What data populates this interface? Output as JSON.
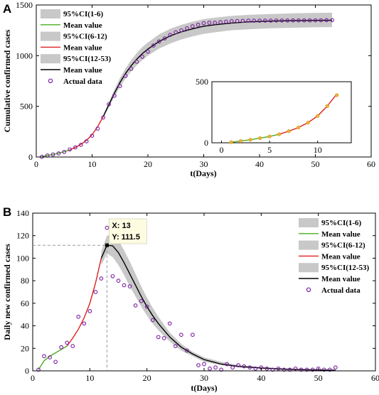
{
  "chart_data": [
    {
      "type": "line",
      "panel": "A",
      "ylabel": "Cumulative confirmed cases",
      "xlabel": "t(Days)",
      "xlim": [
        0,
        60
      ],
      "ylim": [
        0,
        1500
      ],
      "xticks": [
        0,
        10,
        20,
        30,
        40,
        50,
        60
      ],
      "yticks": [
        0,
        500,
        1000,
        1500
      ],
      "legend_position": "top-left",
      "legend": [
        {
          "label": "95%CI(1-6)",
          "kind": "band",
          "color": "#c8c8c8"
        },
        {
          "label": "Mean value",
          "kind": "line",
          "color": "#4caf1e"
        },
        {
          "label": "95%CI(6-12)",
          "kind": "band",
          "color": "#c8c8c8"
        },
        {
          "label": "Mean value",
          "kind": "line",
          "color": "#e02020"
        },
        {
          "label": "95%CI(12-53)",
          "kind": "band",
          "color": "#c8c8c8"
        },
        {
          "label": "Mean value",
          "kind": "line",
          "color": "#000000"
        },
        {
          "label": "Actual data",
          "kind": "marker",
          "color": "#7b1fa2"
        }
      ],
      "actual": {
        "x": [
          1,
          2,
          3,
          4,
          5,
          6,
          7,
          8,
          9,
          10,
          11,
          12,
          13,
          14,
          15,
          16,
          17,
          18,
          19,
          20,
          21,
          22,
          23,
          24,
          25,
          26,
          27,
          28,
          29,
          30,
          31,
          32,
          33,
          34,
          35,
          36,
          37,
          38,
          39,
          40,
          41,
          42,
          43,
          44,
          45,
          46,
          47,
          48,
          49,
          50,
          51,
          52,
          53
        ],
        "y": [
          2,
          15,
          25,
          35,
          50,
          75,
          95,
          120,
          155,
          210,
          280,
          390,
          520,
          605,
          700,
          800,
          870,
          940,
          990,
          1040,
          1100,
          1140,
          1170,
          1205,
          1230,
          1250,
          1270,
          1290,
          1305,
          1320,
          1325,
          1325,
          1330,
          1335,
          1340,
          1342,
          1343,
          1345,
          1345,
          1345,
          1346,
          1346,
          1347,
          1347,
          1347,
          1348,
          1348,
          1348,
          1348,
          1349,
          1349,
          1350,
          1350
        ]
      },
      "mean_segments": [
        {
          "range": [
            1,
            6
          ],
          "color": "#4caf1e",
          "x": [
            1,
            2,
            3,
            4,
            5,
            6
          ],
          "y": [
            5,
            15,
            25,
            38,
            52,
            70
          ]
        },
        {
          "range": [
            6,
            12
          ],
          "color": "#e02020",
          "x": [
            6,
            7,
            8,
            9,
            10,
            11,
            12
          ],
          "y": [
            70,
            95,
            125,
            165,
            220,
            300,
            400
          ]
        },
        {
          "range": [
            12,
            53
          ],
          "color": "#000000",
          "x": [
            12,
            13,
            14,
            15,
            16,
            17,
            18,
            19,
            20,
            22,
            24,
            26,
            28,
            30,
            32,
            35,
            38,
            42,
            46,
            50,
            53
          ],
          "y": [
            400,
            515,
            630,
            735,
            825,
            900,
            965,
            1020,
            1065,
            1140,
            1195,
            1235,
            1265,
            1290,
            1305,
            1322,
            1333,
            1341,
            1345,
            1348,
            1349
          ]
        }
      ],
      "ci_band": {
        "x": [
          12,
          13,
          14,
          15,
          16,
          17,
          18,
          19,
          20,
          22,
          24,
          26,
          28,
          30,
          32,
          35,
          38,
          42,
          46,
          50,
          53
        ],
        "lower": [
          385,
          490,
          595,
          690,
          775,
          845,
          905,
          955,
          1000,
          1070,
          1120,
          1160,
          1190,
          1215,
          1230,
          1250,
          1260,
          1270,
          1275,
          1280,
          1282
        ],
        "upper": [
          415,
          540,
          665,
          780,
          875,
          955,
          1025,
          1085,
          1130,
          1210,
          1265,
          1305,
          1335,
          1360,
          1375,
          1392,
          1403,
          1411,
          1418,
          1422,
          1424
        ]
      },
      "inset": {
        "xlim": [
          0,
          12
        ],
        "ylim": [
          0,
          500
        ],
        "xticks": [
          0,
          5,
          10
        ],
        "yticks": [
          0,
          500
        ],
        "actual": {
          "x": [
            1,
            2,
            3,
            4,
            5,
            6,
            7,
            8,
            9,
            10,
            11,
            12
          ],
          "y": [
            5,
            15,
            25,
            38,
            52,
            70,
            95,
            125,
            165,
            220,
            300,
            390
          ]
        },
        "green": {
          "x": [
            1,
            2,
            3,
            4,
            5,
            6
          ],
          "y": [
            5,
            15,
            25,
            38,
            52,
            70
          ]
        },
        "red": {
          "x": [
            6,
            7,
            8,
            9,
            10,
            11,
            12
          ],
          "y": [
            70,
            95,
            125,
            165,
            220,
            300,
            400
          ]
        }
      }
    },
    {
      "type": "line",
      "panel": "B",
      "ylabel": "Daily new confirmed cases",
      "xlabel": "t(Days)",
      "xlim": [
        0,
        60
      ],
      "ylim": [
        0,
        140
      ],
      "xticks": [
        0,
        10,
        20,
        30,
        40,
        50,
        60
      ],
      "yticks": [
        0,
        20,
        40,
        60,
        80,
        100,
        120,
        140
      ],
      "legend_position": "top-right",
      "legend": [
        {
          "label": "95%CI(1-6)",
          "kind": "band",
          "color": "#c8c8c8"
        },
        {
          "label": "Mean value",
          "kind": "line",
          "color": "#4caf1e"
        },
        {
          "label": "95%CI(6-12)",
          "kind": "band",
          "color": "#c8c8c8"
        },
        {
          "label": "Mean value",
          "kind": "line",
          "color": "#e02020"
        },
        {
          "label": "95%CI(12-53)",
          "kind": "band",
          "color": "#c8c8c8"
        },
        {
          "label": "Mean value",
          "kind": "line",
          "color": "#000000"
        },
        {
          "label": "Actual data",
          "kind": "marker",
          "color": "#7b1fa2"
        }
      ],
      "datatip": {
        "x_label": "X: 13",
        "y_label": "Y: 111.5",
        "x": 13,
        "y": 111.5
      },
      "actual": {
        "x": [
          1,
          2,
          3,
          4,
          5,
          6,
          7,
          8,
          9,
          10,
          11,
          12,
          13,
          14,
          15,
          16,
          17,
          18,
          19,
          20,
          21,
          22,
          23,
          24,
          25,
          26,
          27,
          28,
          29,
          30,
          31,
          32,
          33,
          34,
          35,
          36,
          37,
          38,
          39,
          40,
          41,
          42,
          43,
          44,
          45,
          46,
          47,
          48,
          49,
          50,
          51,
          52,
          53
        ],
        "y": [
          1,
          13,
          12,
          8,
          21,
          25,
          22,
          48,
          42,
          53,
          70,
          82,
          127,
          84,
          80,
          76,
          75,
          58,
          62,
          57,
          45,
          30,
          29,
          42,
          22,
          32,
          18,
          32,
          5,
          6,
          2,
          3,
          1,
          6,
          3,
          5,
          4,
          3,
          2,
          3,
          2,
          1,
          2,
          1,
          1,
          2,
          1,
          1,
          1,
          2,
          1,
          1,
          3
        ]
      },
      "mean_segments": [
        {
          "range": [
            1,
            6
          ],
          "color": "#4caf1e",
          "x": [
            1,
            2,
            3,
            4,
            5,
            6
          ],
          "y": [
            1,
            9,
            13,
            16,
            19,
            22
          ]
        },
        {
          "range": [
            6,
            12
          ],
          "color": "#e02020",
          "x": [
            6,
            7,
            8,
            9,
            10,
            11,
            12
          ],
          "y": [
            22,
            29,
            37,
            47,
            60,
            78,
            100
          ]
        },
        {
          "range": [
            12,
            53
          ],
          "color": "#000000",
          "x": [
            12,
            13,
            14,
            15,
            16,
            17,
            18,
            19,
            20,
            21,
            22,
            23,
            24,
            26,
            28,
            30,
            33,
            36,
            40,
            44,
            48,
            53
          ],
          "y": [
            100,
            111.5,
            111,
            105,
            96,
            86,
            76,
            66,
            57,
            49,
            42,
            36,
            30,
            21,
            15,
            10,
            6,
            4,
            2.5,
            1.5,
            1,
            0.5
          ]
        }
      ],
      "ci_band": {
        "x": [
          12,
          13,
          14,
          15,
          16,
          17,
          18,
          19,
          20,
          21,
          22,
          23,
          24,
          26,
          28,
          30,
          33,
          36,
          40,
          44,
          48,
          53
        ],
        "lower": [
          94,
          104,
          101,
          94,
          85,
          75,
          66,
          57,
          49,
          42,
          36,
          31,
          26,
          18,
          13,
          8,
          5,
          3,
          2,
          1,
          0.5,
          0
        ],
        "upper": [
          106,
          120,
          121,
          116,
          107,
          97,
          86,
          75,
          65,
          56,
          48,
          41,
          34,
          24,
          17,
          12,
          8,
          5,
          3.5,
          2,
          1.5,
          1
        ]
      }
    }
  ]
}
